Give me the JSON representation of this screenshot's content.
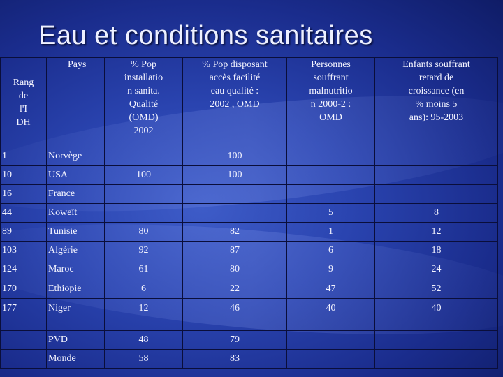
{
  "title": "Eau et conditions sanitaires",
  "table": {
    "headers": {
      "rank": [
        "Rang",
        "de",
        "l'I",
        "DH"
      ],
      "country": "Pays",
      "sanitation": [
        "% Pop",
        "installatio",
        "n sanita.",
        "Qualité",
        "(OMD)",
        "2002"
      ],
      "water": [
        "% Pop disposant",
        "accès facilité",
        "eau qualité :",
        "2002 , OMD"
      ],
      "malnutrition": [
        "Personnes",
        "souffrant",
        "malnutritio",
        "n 2000-2 :",
        "OMD"
      ],
      "stunting": [
        "Enfants souffrant",
        "retard de",
        "croissance (en",
        "% moins 5",
        "ans): 95-2003"
      ]
    },
    "rows": [
      {
        "rank": "1",
        "country": "Norvège",
        "sanitation": "",
        "water": "100",
        "malnutrition": "",
        "stunting": ""
      },
      {
        "rank": "10",
        "country": "USA",
        "sanitation": "100",
        "water": "100",
        "malnutrition": "",
        "stunting": ""
      },
      {
        "rank": "16",
        "country": "France",
        "sanitation": "",
        "water": "",
        "malnutrition": "",
        "stunting": ""
      },
      {
        "rank": "44",
        "country": "Koweït",
        "sanitation": "",
        "water": "",
        "malnutrition": "5",
        "stunting": "8"
      },
      {
        "rank": "89",
        "country": "Tunisie",
        "sanitation": "80",
        "water": "82",
        "malnutrition": "1",
        "stunting": "12"
      },
      {
        "rank": "103",
        "country": "Algérie",
        "sanitation": "92",
        "water": "87",
        "malnutrition": "6",
        "stunting": "18"
      },
      {
        "rank": "124",
        "country": "Maroc",
        "sanitation": "61",
        "water": "80",
        "malnutrition": "9",
        "stunting": "24"
      },
      {
        "rank": "170",
        "country": "Ethiopie",
        "sanitation": "6",
        "water": "22",
        "malnutrition": "47",
        "stunting": "52"
      },
      {
        "rank": "177",
        "country": "Niger",
        "sanitation": "12",
        "water": "46",
        "malnutrition": "40",
        "stunting": "40"
      },
      {
        "rank": "",
        "country": "PVD",
        "sanitation": "48",
        "water": "79",
        "malnutrition": "",
        "stunting": ""
      },
      {
        "rank": "",
        "country": "Monde",
        "sanitation": "58",
        "water": "83",
        "malnutrition": "",
        "stunting": ""
      }
    ]
  }
}
